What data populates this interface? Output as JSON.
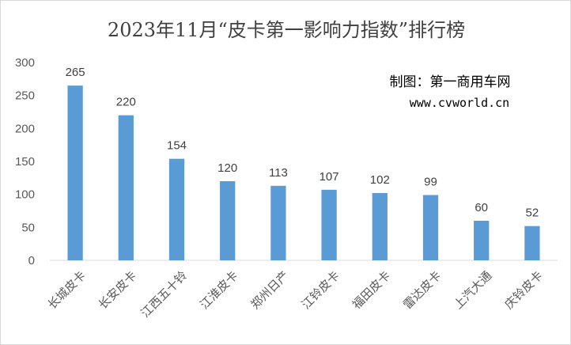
{
  "chart_data": {
    "type": "bar",
    "title": "2023年11月“皮卡第一影响力指数”排行榜",
    "categories": [
      "长城皮卡",
      "长安皮卡",
      "江西五十铃",
      "江淮皮卡",
      "郑州日产",
      "江铃皮卡",
      "福田皮卡",
      "雷达皮卡",
      "上汽大通",
      "庆铃皮卡"
    ],
    "values": [
      265,
      220,
      154,
      120,
      113,
      107,
      102,
      99,
      60,
      52
    ],
    "xlabel": "",
    "ylabel": "",
    "ylim": [
      0,
      300
    ],
    "yticks": [
      0,
      50,
      100,
      150,
      200,
      250,
      300
    ],
    "grid": false,
    "legend": "none",
    "data_labels": true,
    "bar_color": "#5b9bd5",
    "annotations": {
      "credit": "制图：第一商用车网",
      "url": "www.cvworld.cn"
    }
  }
}
